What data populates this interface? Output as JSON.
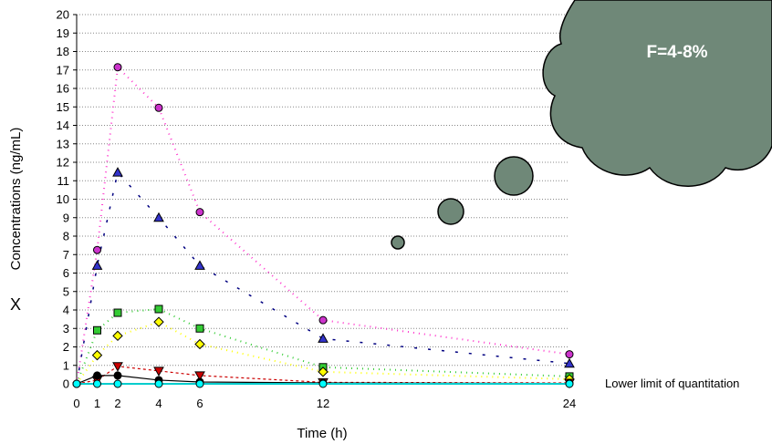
{
  "chart_data": {
    "type": "line",
    "title": "",
    "xlabel": "Time (h)",
    "ylabel": "Concentrations (ng/mL)",
    "side_label": "X",
    "callout": "F=4-8%",
    "lloq_label": "Lower limit of quantitation",
    "xlim": [
      0,
      24
    ],
    "ylim": [
      0,
      20
    ],
    "x_ticks": [
      0,
      1,
      2,
      4,
      6,
      12,
      24
    ],
    "y_ticks": [
      0,
      1,
      2,
      3,
      4,
      5,
      6,
      7,
      8,
      9,
      10,
      11,
      12,
      13,
      14,
      15,
      16,
      17,
      18,
      19,
      20
    ],
    "grid": "horizontal dotted",
    "x": [
      0,
      1,
      2,
      4,
      6,
      12,
      24
    ],
    "series": [
      {
        "marker": "circle",
        "color": "#ff33cc",
        "fill": "#cc33cc",
        "values": [
          0,
          7.25,
          17.15,
          14.95,
          9.3,
          3.45,
          1.6
        ]
      },
      {
        "marker": "triangle",
        "color": "#000080",
        "fill": "#3333cc",
        "values": [
          0,
          6.4,
          11.45,
          9.0,
          6.4,
          2.45,
          1.1
        ]
      },
      {
        "marker": "square",
        "color": "#33cc33",
        "fill": "#33cc33",
        "values": [
          0,
          2.9,
          3.85,
          4.05,
          3.0,
          0.9,
          0.4
        ]
      },
      {
        "marker": "diamond",
        "color": "#ffff00",
        "fill": "#ffff00",
        "values": [
          0,
          1.55,
          2.6,
          3.35,
          2.15,
          0.65,
          0.25
        ]
      },
      {
        "marker": "inverted-triangle",
        "color": "#cc0000",
        "fill": "#cc0000",
        "values": [
          0,
          0.2,
          0.95,
          0.7,
          0.45,
          0.08,
          0.05
        ]
      },
      {
        "marker": "circle",
        "color": "#000000",
        "fill": "#000000",
        "values": [
          0,
          0.45,
          0.45,
          0.2,
          0.1,
          0.05,
          0.02
        ]
      },
      {
        "marker": "circle",
        "color": "#00cccc",
        "fill": "#00ffff",
        "values": [
          0,
          0,
          0,
          0,
          0,
          0,
          0
        ]
      }
    ],
    "colors": {
      "cloud": "#6f8878",
      "bubble": "#6f8878"
    }
  }
}
